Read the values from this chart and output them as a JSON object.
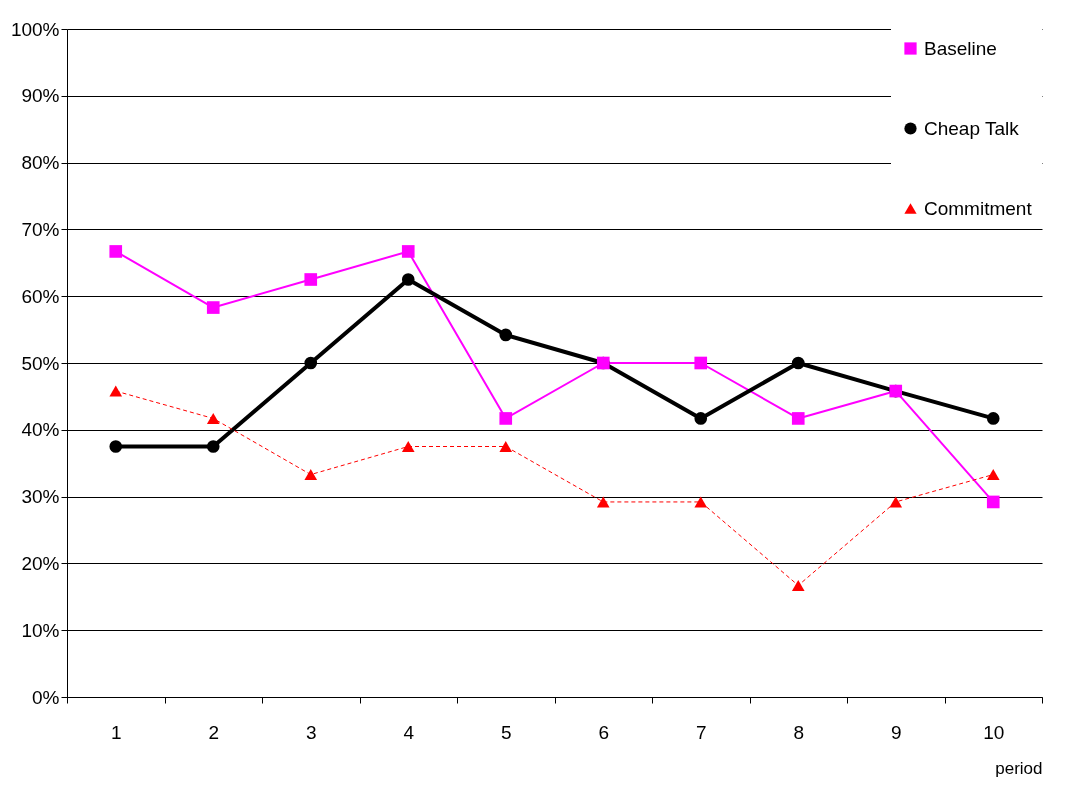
{
  "chart_data": {
    "type": "line",
    "xlabel": "period",
    "categories": [
      "1",
      "2",
      "3",
      "4",
      "5",
      "6",
      "7",
      "8",
      "9",
      "10"
    ],
    "ylim": [
      0,
      100
    ],
    "yticks": [
      {
        "value": 0,
        "label": "0%"
      },
      {
        "value": 10,
        "label": "10%"
      },
      {
        "value": 20,
        "label": "20%"
      },
      {
        "value": 30,
        "label": "30%"
      },
      {
        "value": 40,
        "label": "40%"
      },
      {
        "value": 50,
        "label": "50%"
      },
      {
        "value": 60,
        "label": "60%"
      },
      {
        "value": 70,
        "label": "70%"
      },
      {
        "value": 80,
        "label": "80%"
      },
      {
        "value": 90,
        "label": "90%"
      },
      {
        "value": 100,
        "label": "100%"
      }
    ],
    "grid": "y",
    "legend": "top right",
    "series": [
      {
        "name": "Baseline",
        "color": "#ff00ff",
        "marker": "square",
        "line_style": "solid",
        "values": [
          66.7,
          58.3,
          62.5,
          66.7,
          41.7,
          50.0,
          50.0,
          41.7,
          45.8,
          29.2
        ]
      },
      {
        "name": "Cheap Talk",
        "color": "#000000",
        "marker": "circle",
        "line_style": "solid",
        "values": [
          37.5,
          37.5,
          50.0,
          62.5,
          54.2,
          50.0,
          41.7,
          50.0,
          45.8,
          41.7
        ]
      },
      {
        "name": "Commitment",
        "color": "#ff0000",
        "marker": "triangle",
        "line_style": "dashed",
        "values": [
          45.8,
          41.7,
          33.3,
          37.5,
          37.5,
          29.2,
          29.2,
          16.7,
          29.2,
          33.3
        ]
      }
    ]
  }
}
